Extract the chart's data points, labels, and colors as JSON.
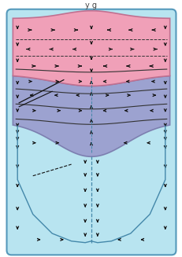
{
  "fig_width": 2.32,
  "fig_height": 3.27,
  "dpi": 100,
  "bg_color": "#ffffff",
  "light_blue_color": "#b8e4f0",
  "cylinder_edge_color": "#5599bb",
  "pink_color": "#f0a0b8",
  "pink_edge_color": "#c07090",
  "blue_color": "#9999cc",
  "blue_edge_color": "#7777aa",
  "arrow_color": "#111111",
  "dashed_color": "#4488aa",
  "line_color": "#333333"
}
